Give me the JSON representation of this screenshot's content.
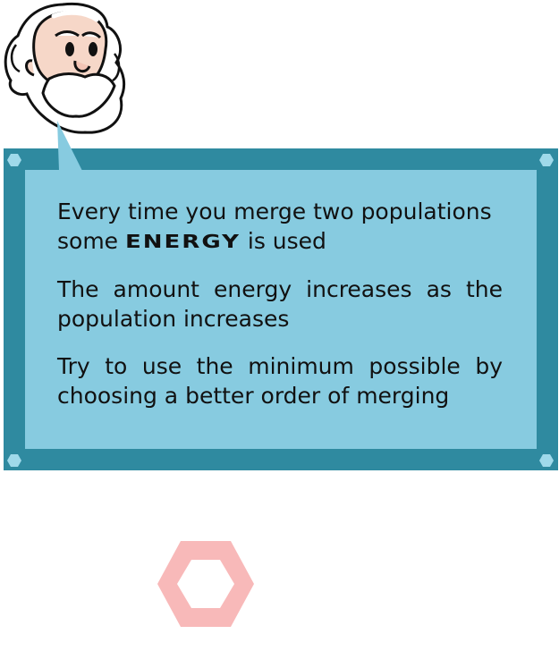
{
  "dialog": {
    "line1": "Every time you merge two populations",
    "line2_prefix": "some ",
    "energy_word": "ENERGY",
    "line2_suffix": " is used",
    "paragraph2": "The amount energy increases as the population increases",
    "paragraph3": "Try to use the minimum possible by choosing a better order of merging"
  },
  "colors": {
    "frame": "#2f8aa0",
    "panel": "#87cbe0",
    "bolt": "#9fd9ea",
    "hex_button": "#f8b9b9"
  },
  "icons": {
    "character": "scientist-portrait-icon",
    "continue": "hexagon-outline-icon"
  }
}
